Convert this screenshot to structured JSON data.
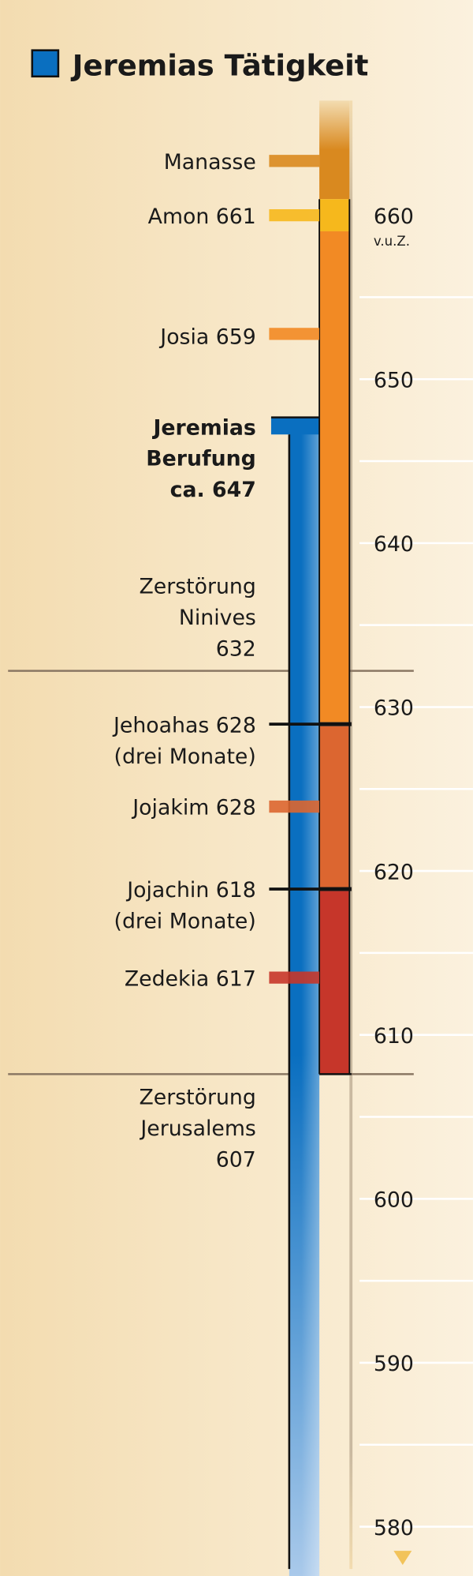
{
  "title": "Jeremias Tätigkeit",
  "axis": {
    "unit": "v.u.Z.",
    "labels": [
      "660",
      "650",
      "640",
      "630",
      "620",
      "610",
      "600",
      "590",
      "580"
    ]
  },
  "events": [
    {
      "lines": [
        "Manasse"
      ]
    },
    {
      "lines": [
        "Amon 661"
      ]
    },
    {
      "lines": [
        "Josia 659"
      ]
    },
    {
      "lines": [
        "Jeremias",
        "Berufung",
        "ca. 647"
      ]
    },
    {
      "lines": [
        "Zerstörung",
        "Ninives",
        "632"
      ]
    },
    {
      "lines": [
        "Jehoahas 628",
        "(drei Monate)"
      ]
    },
    {
      "lines": [
        "Jojakim 628"
      ]
    },
    {
      "lines": [
        "Jojachin 618",
        "(drei Monate)"
      ]
    },
    {
      "lines": [
        "Zedekia 617"
      ]
    },
    {
      "lines": [
        "Zerstörung",
        "Jerusalems",
        "607"
      ]
    }
  ]
}
